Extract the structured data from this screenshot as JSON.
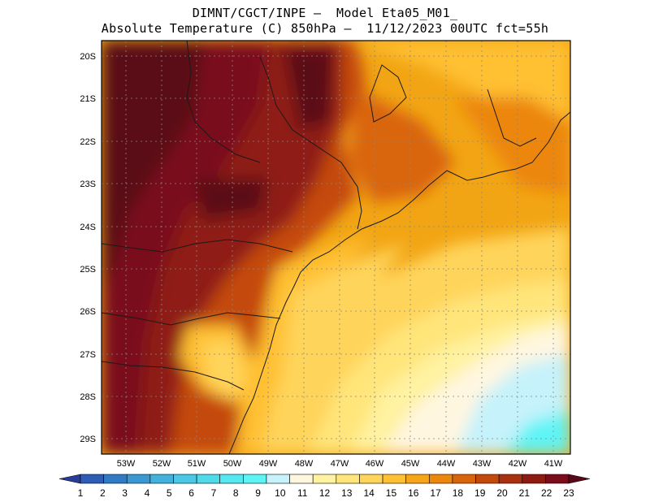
{
  "title": {
    "line1": "DIMNT/CGCT/INPE –  Model Eta05_M01_",
    "line2": "Absolute Temperature (C) 850hPa –  11/12/2023 00UTC fct=55h"
  },
  "map": {
    "lon_range": [
      -53.8,
      -40.8
    ],
    "lat_range": [
      -29.45,
      -19.8
    ],
    "lat_labels": [
      "20S",
      "21S",
      "22S",
      "23S",
      "24S",
      "25S",
      "26S",
      "27S",
      "28S",
      "29S"
    ],
    "lon_labels": [
      "53W",
      "52W",
      "51W",
      "50W",
      "49W",
      "48W",
      "47W",
      "46W",
      "45W",
      "44W",
      "43W",
      "42W",
      "41W"
    ]
  },
  "colorbar": {
    "labels": [
      "1",
      "2",
      "3",
      "4",
      "5",
      "6",
      "7",
      "8",
      "9",
      "10",
      "11",
      "12",
      "13",
      "14",
      "15",
      "16",
      "17",
      "18",
      "19",
      "20",
      "21",
      "22",
      "23"
    ],
    "colors": [
      "#283c9a",
      "#2d5db4",
      "#2f7cc4",
      "#3a98d2",
      "#42b2dc",
      "#4ac8e4",
      "#4fdaea",
      "#56e8f0",
      "#5ef4f6",
      "#c6f2fb",
      "#fff6e0",
      "#fff2a0",
      "#ffe57a",
      "#ffd45a",
      "#ffc033",
      "#f6a418",
      "#ec860d",
      "#d9650a",
      "#c44a0c",
      "#aa3010",
      "#8f1a12",
      "#7a0c1c",
      "#5a0818"
    ]
  }
}
